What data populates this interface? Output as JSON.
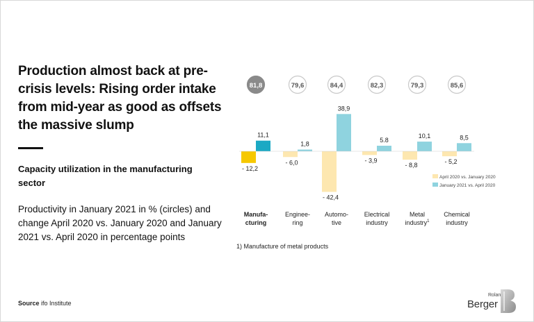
{
  "headline": "Production almost back at pre-crisis levels: Rising order intake from mid-year as good as offsets the massive slump",
  "subtitle": "Capacity utilization in the manufacturing sector",
  "description": "Productivity in January 2021 in % (circles) and change April 2020 vs. January 2020 and January 2021 vs. April 2020 in percentage points",
  "footnote": "1) Manufacture of metal products",
  "source_label": "Source",
  "source_text": "ifo Institute",
  "logo": {
    "small": "Roland",
    "big": "Berger"
  },
  "colors": {
    "april": "#fde7b0",
    "april_highlight": "#f6c800",
    "january": "#8fd3df",
    "january_highlight": "#1ba9c4",
    "circle_highlight": "#8a8a8a",
    "circle_border": "#c8c8c8"
  },
  "chart_data": {
    "type": "bar",
    "categories": [
      [
        "Manufa-",
        "cturing"
      ],
      [
        "Enginee-",
        "ring"
      ],
      [
        "Automo-",
        "tive"
      ],
      [
        "Electrical",
        "industry"
      ],
      [
        "Metal",
        "industry"
      ],
      [
        "Chemical",
        "industry"
      ]
    ],
    "category_superscript": [
      "",
      "",
      "",
      "",
      "1",
      ""
    ],
    "highlight_index": 0,
    "circles": [
      81.8,
      79.6,
      84.4,
      82.3,
      79.3,
      85.6
    ],
    "circle_labels": [
      "81,8",
      "79,6",
      "84,4",
      "82,3",
      "79,3",
      "85,6"
    ],
    "series": [
      {
        "name": "April 2020 vs. January 2020",
        "values": [
          -12.2,
          -6.0,
          -42.4,
          -3.9,
          -8.8,
          -5.2
        ],
        "labels": [
          "- 12,2",
          "- 6,0",
          "- 42,4",
          "- 3,9",
          "- 8,8",
          "- 5,2"
        ]
      },
      {
        "name": "January 2021 vs. April 2020",
        "values": [
          11.1,
          1.8,
          38.9,
          5.8,
          10.1,
          8.5
        ],
        "labels": [
          "11,1",
          "1,8",
          "38,9",
          "5.8",
          "10,1",
          "8,5"
        ]
      }
    ],
    "ylim": [
      -42.4,
      38.9
    ],
    "grid": false,
    "legend_placement": "right"
  }
}
